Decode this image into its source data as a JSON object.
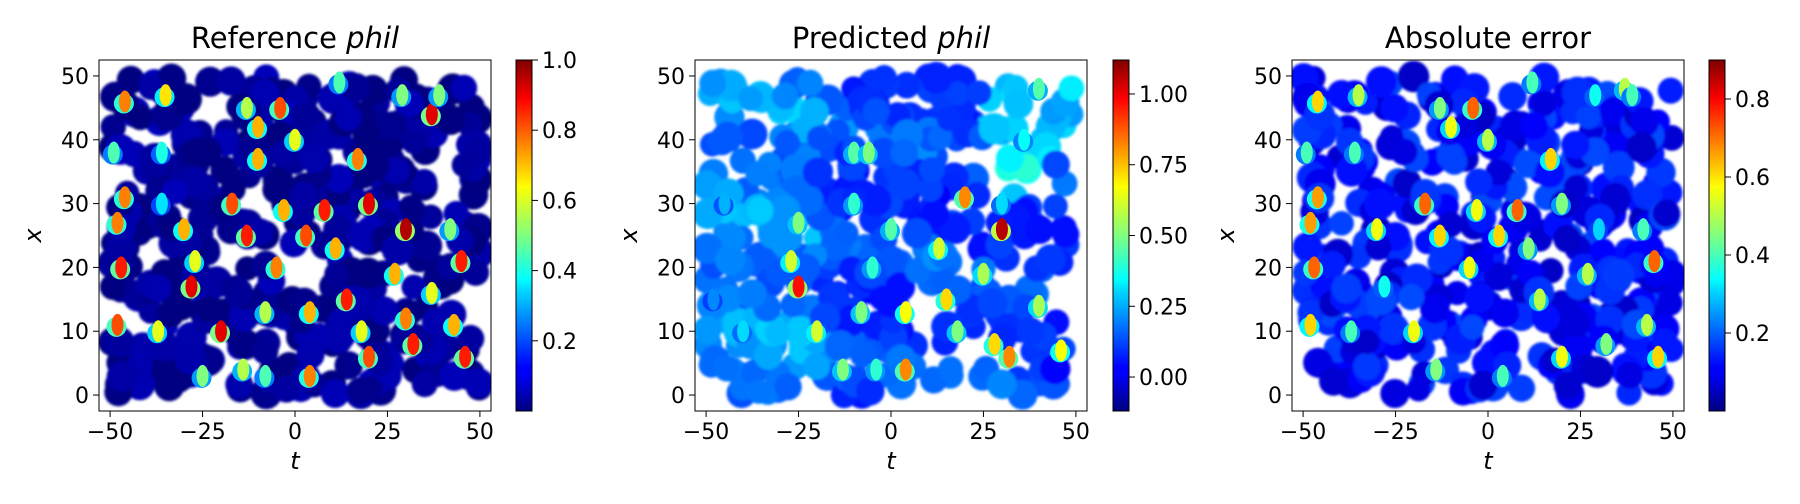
{
  "chart_data": [
    {
      "type": "heatmap",
      "title_main": "Reference ",
      "title_var": "phil",
      "xlabel": "t",
      "ylabel": "x",
      "xlim": [
        -53,
        53
      ],
      "ylim": [
        -2.5,
        52.5
      ],
      "xticks": [
        "−50",
        "−25",
        "0",
        "25",
        "50"
      ],
      "yticks": [
        "0",
        "10",
        "20",
        "30",
        "40",
        "50"
      ],
      "colorbar": {
        "min": 0.0,
        "max": 1.0,
        "ticks": [
          0.2,
          0.4,
          0.6,
          0.8,
          1.0
        ],
        "labels": [
          "0.2",
          "0.4",
          "0.6",
          "0.8",
          "1.0"
        ]
      },
      "background_value": 0.02,
      "points": [
        [
          -46,
          46,
          0.75
        ],
        [
          -35,
          47,
          0.65
        ],
        [
          -13,
          45,
          0.55
        ],
        [
          -10,
          42,
          0.7
        ],
        [
          -4,
          45,
          0.8
        ],
        [
          0,
          40,
          0.6
        ],
        [
          12,
          49,
          0.45
        ],
        [
          17,
          37,
          0.75
        ],
        [
          29,
          47,
          0.5
        ],
        [
          37,
          44,
          0.9
        ],
        [
          39,
          47,
          0.5
        ],
        [
          -49,
          38,
          0.45
        ],
        [
          -36,
          38,
          0.4
        ],
        [
          -10,
          37,
          0.7
        ],
        [
          -46,
          31,
          0.75
        ],
        [
          -36,
          30,
          0.35
        ],
        [
          -17,
          30,
          0.8
        ],
        [
          -3,
          29,
          0.7
        ],
        [
          8,
          29,
          0.85
        ],
        [
          20,
          30,
          0.9
        ],
        [
          -48,
          27,
          0.75
        ],
        [
          -30,
          26,
          0.7
        ],
        [
          -13,
          25,
          0.85
        ],
        [
          3,
          25,
          0.8
        ],
        [
          30,
          26,
          0.95
        ],
        [
          42,
          26,
          0.5
        ],
        [
          -47,
          20,
          0.85
        ],
        [
          -28,
          17,
          0.9
        ],
        [
          -5,
          20,
          0.75
        ],
        [
          11,
          23,
          0.7
        ],
        [
          27,
          19,
          0.7
        ],
        [
          37,
          16,
          0.6
        ],
        [
          45,
          21,
          0.85
        ],
        [
          -48,
          11,
          0.8
        ],
        [
          -37,
          10,
          0.6
        ],
        [
          -20,
          10,
          0.9
        ],
        [
          -8,
          13,
          0.55
        ],
        [
          4,
          13,
          0.7
        ],
        [
          14,
          15,
          0.85
        ],
        [
          18,
          10,
          0.6
        ],
        [
          32,
          8,
          0.85
        ],
        [
          43,
          11,
          0.7
        ],
        [
          46,
          6,
          0.85
        ],
        [
          -25,
          3,
          0.5
        ],
        [
          -14,
          4,
          0.55
        ],
        [
          -8,
          3,
          0.45
        ],
        [
          4,
          3,
          0.75
        ],
        [
          20,
          6,
          0.8
        ],
        [
          -27,
          21,
          0.6
        ],
        [
          30,
          12,
          0.75
        ]
      ]
    },
    {
      "type": "heatmap",
      "title_main": "Predicted ",
      "title_var": "phil",
      "xlabel": "t",
      "ylabel": "x",
      "xlim": [
        -53,
        53
      ],
      "ylim": [
        -2.5,
        52.5
      ],
      "xticks": [
        "−50",
        "−25",
        "0",
        "25",
        "50"
      ],
      "yticks": [
        "0",
        "10",
        "20",
        "30",
        "40",
        "50"
      ],
      "colorbar": {
        "min": -0.12,
        "max": 1.12,
        "ticks": [
          0.0,
          0.25,
          0.5,
          0.75,
          1.0
        ],
        "labels": [
          "0.00",
          "0.25",
          "0.50",
          "0.75",
          "1.00"
        ]
      },
      "background_value": 0.08,
      "points": [
        [
          -10,
          38,
          0.45
        ],
        [
          -6,
          38,
          0.5
        ],
        [
          40,
          48,
          0.45
        ],
        [
          36,
          40,
          0.35
        ],
        [
          30,
          30,
          0.3
        ],
        [
          -45,
          30,
          0.25
        ],
        [
          -25,
          27,
          0.5
        ],
        [
          -10,
          30,
          0.4
        ],
        [
          0,
          26,
          0.45
        ],
        [
          20,
          31,
          0.8
        ],
        [
          30,
          26,
          1.05
        ],
        [
          -25,
          17,
          0.95
        ],
        [
          -27,
          21,
          0.6
        ],
        [
          -5,
          20,
          0.4
        ],
        [
          13,
          23,
          0.6
        ],
        [
          25,
          19,
          0.55
        ],
        [
          15,
          15,
          0.7
        ],
        [
          18,
          10,
          0.5
        ],
        [
          40,
          14,
          0.55
        ],
        [
          -20,
          10,
          0.6
        ],
        [
          -8,
          13,
          0.5
        ],
        [
          4,
          13,
          0.65
        ],
        [
          28,
          8,
          0.7
        ],
        [
          32,
          6,
          0.8
        ],
        [
          46,
          7,
          0.65
        ],
        [
          -13,
          4,
          0.5
        ],
        [
          -4,
          4,
          0.4
        ],
        [
          4,
          4,
          0.8
        ],
        [
          -40,
          10,
          0.3
        ],
        [
          -48,
          15,
          0.2
        ]
      ]
    },
    {
      "type": "heatmap",
      "title_main": "Absolute error",
      "title_var": "",
      "xlabel": "t",
      "ylabel": "x",
      "xlim": [
        -53,
        53
      ],
      "ylim": [
        -2.5,
        52.5
      ],
      "xticks": [
        "−50",
        "−25",
        "0",
        "25",
        "50"
      ],
      "yticks": [
        "0",
        "10",
        "20",
        "30",
        "40",
        "50"
      ],
      "colorbar": {
        "min": 0.0,
        "max": 0.9,
        "ticks": [
          0.2,
          0.4,
          0.6,
          0.8
        ],
        "labels": [
          "0.2",
          "0.4",
          "0.6",
          "0.8"
        ]
      },
      "background_value": 0.06,
      "points": [
        [
          -46,
          46,
          0.6
        ],
        [
          -35,
          47,
          0.5
        ],
        [
          -13,
          45,
          0.45
        ],
        [
          -10,
          42,
          0.55
        ],
        [
          -4,
          45,
          0.7
        ],
        [
          0,
          40,
          0.5
        ],
        [
          12,
          49,
          0.4
        ],
        [
          17,
          37,
          0.6
        ],
        [
          29,
          47,
          0.35
        ],
        [
          37,
          48,
          0.5
        ],
        [
          39,
          47,
          0.4
        ],
        [
          -49,
          38,
          0.4
        ],
        [
          -36,
          38,
          0.4
        ],
        [
          -46,
          31,
          0.65
        ],
        [
          -17,
          30,
          0.7
        ],
        [
          -3,
          29,
          0.55
        ],
        [
          8,
          29,
          0.7
        ],
        [
          20,
          30,
          0.45
        ],
        [
          -48,
          27,
          0.65
        ],
        [
          -30,
          26,
          0.55
        ],
        [
          -13,
          25,
          0.6
        ],
        [
          3,
          25,
          0.6
        ],
        [
          30,
          26,
          0.3
        ],
        [
          42,
          26,
          0.4
        ],
        [
          -47,
          20,
          0.7
        ],
        [
          -28,
          17,
          0.35
        ],
        [
          -5,
          20,
          0.55
        ],
        [
          11,
          23,
          0.45
        ],
        [
          27,
          19,
          0.5
        ],
        [
          45,
          21,
          0.7
        ],
        [
          -48,
          11,
          0.6
        ],
        [
          -37,
          10,
          0.4
        ],
        [
          -20,
          10,
          0.55
        ],
        [
          14,
          15,
          0.5
        ],
        [
          32,
          8,
          0.45
        ],
        [
          43,
          11,
          0.5
        ],
        [
          46,
          6,
          0.6
        ],
        [
          -14,
          4,
          0.45
        ],
        [
          4,
          3,
          0.4
        ],
        [
          20,
          6,
          0.55
        ]
      ]
    }
  ]
}
